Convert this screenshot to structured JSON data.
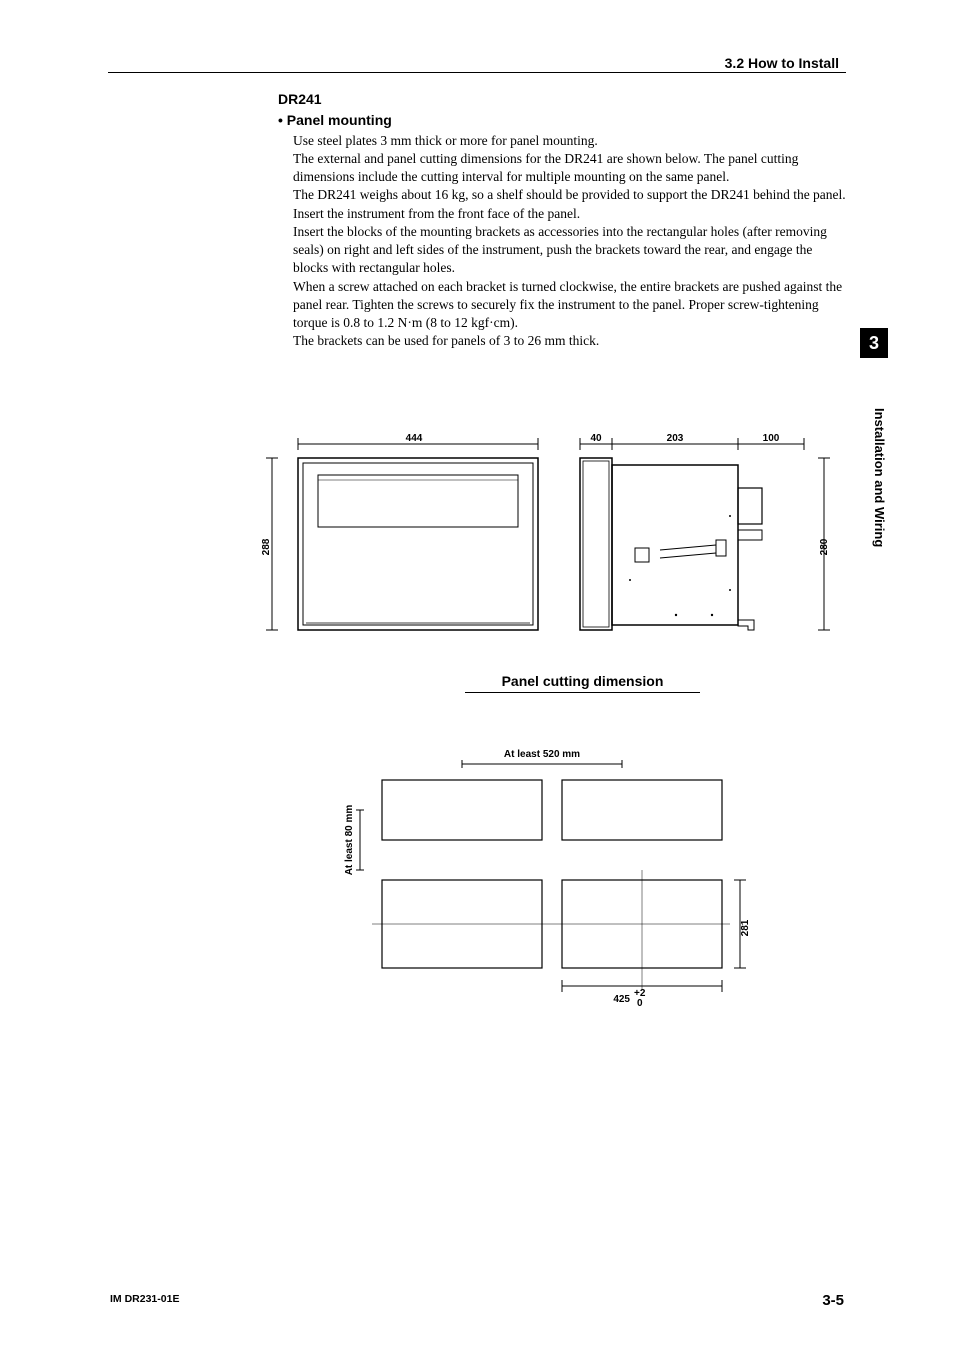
{
  "header": {
    "section": "3.2  How to Install"
  },
  "sidebar": {
    "tab_number": "3",
    "tab_label": "Installation and Wiring"
  },
  "footer": {
    "doc_id": "IM DR231-01E",
    "page": "3-5"
  },
  "content": {
    "model": "DR241",
    "bullet": "• Panel mounting",
    "para": "Use steel plates 3 mm thick or more for panel mounting.\nThe external and panel cutting dimensions for the DR241 are shown below.  The panel cutting dimensions include the cutting interval for multiple mounting on the same panel.\nThe DR241 weighs about 16 kg, so a shelf should be provided to support the DR241 behind the panel.\nInsert the instrument from the front face of the panel.\nInsert the blocks of the mounting brackets as accessories into the rectangular holes (after removing seals) on right and left sides of the instrument, push the brackets toward the rear, and engage the blocks with rectangular holes.\nWhen a screw attached on each bracket is turned clockwise, the entire brackets are pushed against the panel rear.  Tighten the screws to securely fix the instrument to the panel.  Proper screw-tightening torque is 0.8 to 1.2 N·m (8 to 12 kgf·cm).\nThe brackets can be used for panels of 3 to 26 mm thick."
  },
  "front_view": {
    "width_label": "444",
    "height_label": "288"
  },
  "side_view": {
    "d1": "40",
    "d2": "203",
    "d3": "100",
    "height_label": "280"
  },
  "panel_cutting_title": "Panel cutting dimension",
  "panel_cut": {
    "h_spacing": "At least 520 mm",
    "v_spacing": "At least 80 mm",
    "cut_w": "425",
    "cut_w_tol_top": "+2",
    "cut_w_tol_bot": "0",
    "cut_h": "281"
  }
}
